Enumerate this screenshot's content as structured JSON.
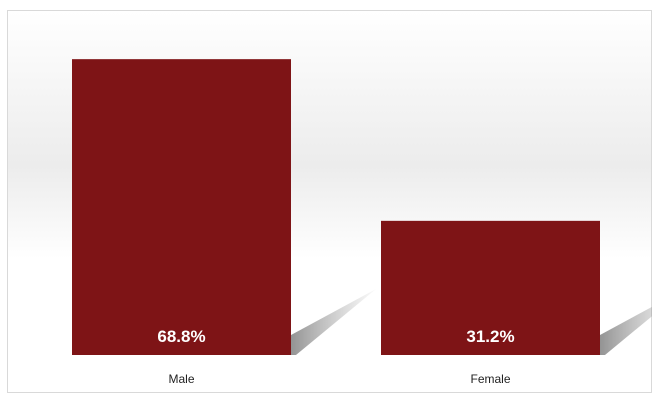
{
  "chart_data": {
    "type": "bar",
    "categories": [
      "Male",
      "Female"
    ],
    "values": [
      68.8,
      31.2
    ],
    "data_labels": [
      "68.8%",
      "31.2%"
    ],
    "ylim": [
      0,
      80
    ],
    "grid": false,
    "legend": "none",
    "colors": {
      "bar": "#7e1416",
      "data_label": "#ffffff",
      "tick_label": "#222222",
      "frame": "#d9d9d9",
      "shadow": "#7f7f7f"
    }
  }
}
